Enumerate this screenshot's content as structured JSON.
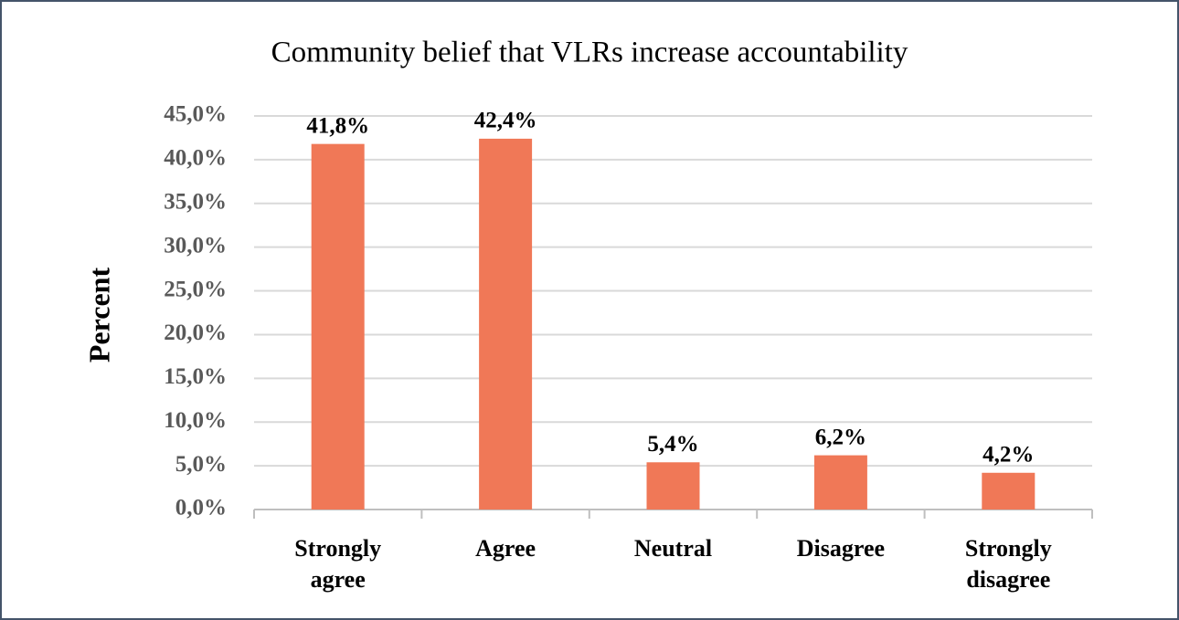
{
  "chart_data": {
    "type": "bar",
    "title": "Community belief that VLRs increase accountability",
    "y_label": "Percent",
    "categories": [
      "Strongly agree",
      "Agree",
      "Neutral",
      "Disagree",
      "Strongly disagree"
    ],
    "values": [
      41.8,
      42.4,
      5.4,
      6.2,
      4.2
    ],
    "value_labels": [
      "41,8%",
      "42,4%",
      "5,4%",
      "6,2%",
      "4,2%"
    ],
    "color": "#f07857",
    "ylim": [
      0,
      45
    ],
    "yticks": [
      {
        "value": 0,
        "label": "0,0%"
      },
      {
        "value": 5,
        "label": "5,0%"
      },
      {
        "value": 10,
        "label": "10,0%"
      },
      {
        "value": 15,
        "label": "15,0%"
      },
      {
        "value": 20,
        "label": "20,0%"
      },
      {
        "value": 25,
        "label": "25,0%"
      },
      {
        "value": 30,
        "label": "30,0%"
      },
      {
        "value": 35,
        "label": "35,0%"
      },
      {
        "value": 40,
        "label": "40,0%"
      },
      {
        "value": 45,
        "label": "45,0%"
      }
    ],
    "grid": true
  }
}
